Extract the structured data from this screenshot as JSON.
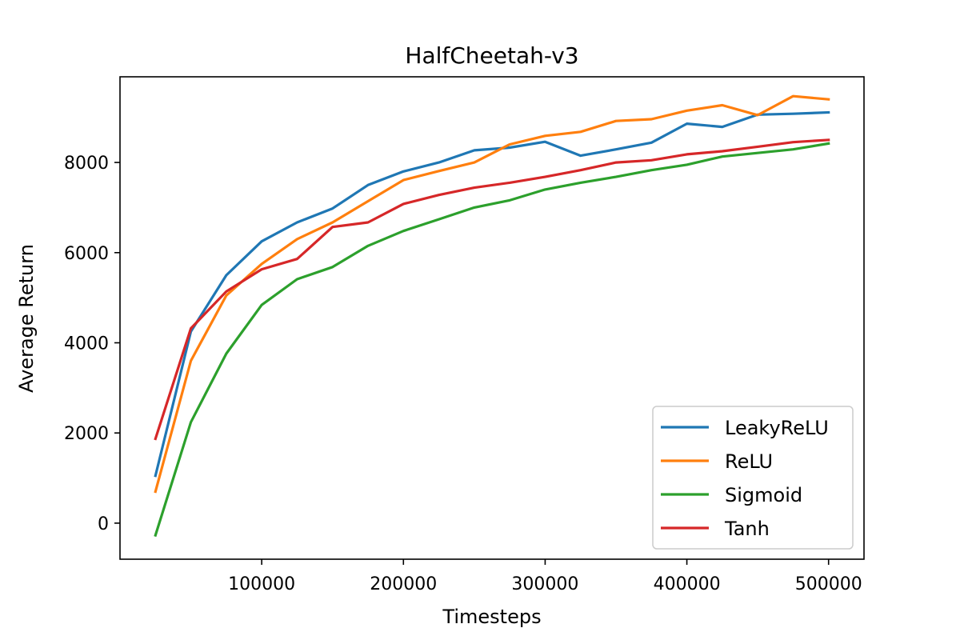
{
  "chart_data": {
    "type": "line",
    "title": "HalfCheetah-v3",
    "xlabel": "Timesteps",
    "ylabel": "Average Return",
    "xlim": [
      0,
      525000
    ],
    "ylim": [
      -800,
      9900
    ],
    "xticks": [
      100000,
      200000,
      300000,
      400000,
      500000
    ],
    "yticks": [
      0,
      2000,
      4000,
      6000,
      8000
    ],
    "grid": false,
    "legend_position": "lower-right",
    "x": [
      25000,
      50000,
      75000,
      100000,
      125000,
      150000,
      175000,
      200000,
      225000,
      250000,
      275000,
      300000,
      325000,
      350000,
      375000,
      400000,
      425000,
      450000,
      475000,
      500000
    ],
    "series": [
      {
        "name": "LeakyReLU",
        "color": "#1f77b4",
        "values": [
          1050,
          4250,
          5500,
          6250,
          6670,
          6980,
          7500,
          7800,
          8000,
          8270,
          8330,
          8460,
          8150,
          8290,
          8440,
          8860,
          8790,
          9060,
          9080,
          9110
        ]
      },
      {
        "name": "ReLU",
        "color": "#ff7f0e",
        "values": [
          700,
          3600,
          5050,
          5750,
          6300,
          6670,
          7140,
          7610,
          7810,
          8000,
          8400,
          8590,
          8680,
          8920,
          8960,
          9150,
          9270,
          9050,
          9470,
          9400
        ]
      },
      {
        "name": "Sigmoid",
        "color": "#2ca02c",
        "values": [
          -270,
          2240,
          3760,
          4840,
          5410,
          5680,
          6150,
          6480,
          6740,
          7000,
          7160,
          7400,
          7550,
          7680,
          7830,
          7950,
          8130,
          8210,
          8290,
          8420
        ]
      },
      {
        "name": "Tanh",
        "color": "#d62728",
        "values": [
          1870,
          4320,
          5140,
          5630,
          5860,
          6570,
          6670,
          7080,
          7280,
          7440,
          7550,
          7680,
          7830,
          8000,
          8050,
          8180,
          8250,
          8350,
          8450,
          8500
        ]
      }
    ]
  }
}
